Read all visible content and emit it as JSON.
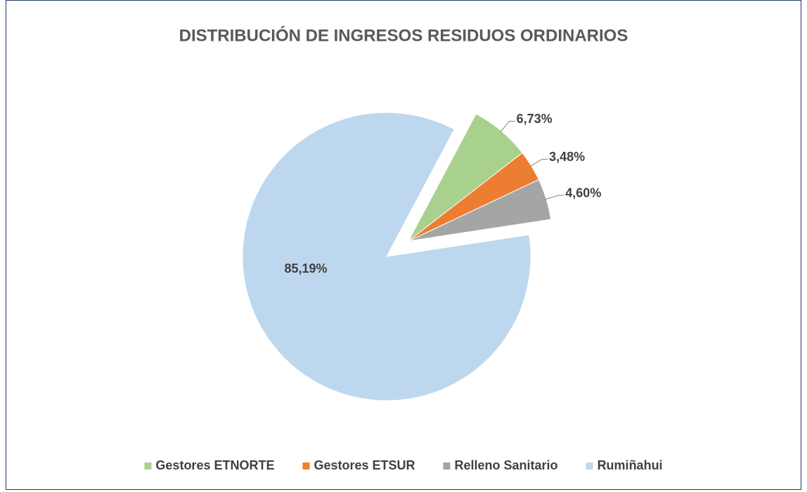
{
  "chart_data": {
    "type": "pie",
    "title": "DISTRIBUCIÓN DE INGRESOS RESIDUOS ORDINARIOS",
    "categories": [
      "Gestores ETNORTE",
      "Gestores ETSUR",
      "Relleno Sanitario",
      "Rumiñahui"
    ],
    "values": [
      6.73,
      3.48,
      4.6,
      85.19
    ],
    "value_labels": [
      "6,73%",
      "3,48%",
      "4,60%",
      "85,19%"
    ],
    "colors": [
      "#a9d18e",
      "#ed7d31",
      "#a5a5a5",
      "#bdd7ee"
    ],
    "legend": "bottom"
  }
}
